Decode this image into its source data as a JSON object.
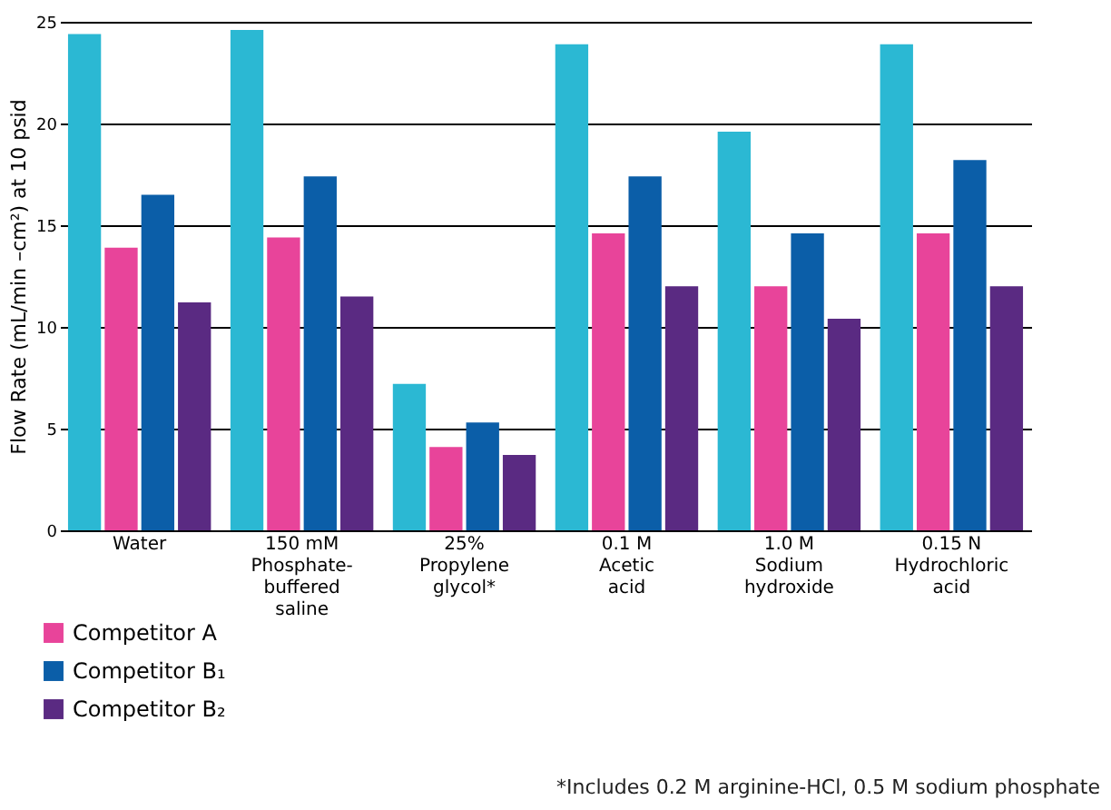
{
  "chart_data": {
    "type": "bar",
    "ylabel": "Flow Rate (mL/min –cm²) at 10 psid",
    "categories": [
      "Water",
      "150 mM\nPhosphate-\nbuffered\nsaline",
      "25%\nPropylene\nglycol*",
      "0.1 M\nAcetic\nacid",
      "1.0 M\nSodium\nhydroxide",
      "0.15 N\nHydrochloric\nacid"
    ],
    "series": [
      {
        "color": "#2bb8d3",
        "values": [
          24.4,
          24.6,
          7.2,
          23.9,
          19.6,
          23.9
        ]
      },
      {
        "name": "Competitor A",
        "color": "#e8449a",
        "values": [
          13.9,
          14.4,
          4.1,
          14.6,
          12.0,
          14.6
        ]
      },
      {
        "name": "Competitor B₁",
        "color": "#0b5ea8",
        "values": [
          16.5,
          17.4,
          5.3,
          17.4,
          14.6,
          18.2
        ]
      },
      {
        "name": "Competitor B₂",
        "color": "#5a2a82",
        "values": [
          11.2,
          11.5,
          3.7,
          12.0,
          10.4,
          12.0
        ]
      }
    ],
    "ylim": [
      0,
      25
    ],
    "yticks": [
      0,
      5,
      10,
      15,
      20,
      25
    ],
    "grid": "y",
    "legend": "bottom left",
    "annotations": [
      "*Includes 0.2 M arginine-HCl, 0.5 M sodium phosphate"
    ]
  }
}
